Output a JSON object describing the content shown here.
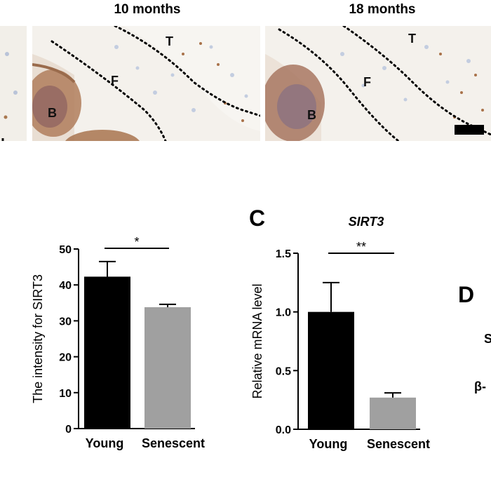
{
  "top": {
    "headers": [
      "10 months",
      "18 months"
    ],
    "micrographs": [
      {
        "labels": [
          "T",
          "F",
          "B"
        ]
      },
      {
        "labels": [
          "T",
          "F",
          "B"
        ]
      }
    ]
  },
  "panels": {
    "c_letter": "C",
    "d_letter": "D",
    "c_title": "SIRT3",
    "d_partial_labels": [
      "S",
      "β-"
    ]
  },
  "chart_data": [
    {
      "type": "bar",
      "title": "",
      "categories": [
        "Young",
        "Senescent"
      ],
      "values": [
        42.3,
        33.8
      ],
      "errors": [
        4.2,
        0.8
      ],
      "colors": [
        "#000000",
        "#a0a0a0"
      ],
      "ylabel": "The intensity for SIRT3",
      "xlabel": "",
      "ylim": [
        0,
        50
      ],
      "yticks": [
        "0",
        "10",
        "20",
        "30",
        "40",
        "50"
      ],
      "significance": "*"
    },
    {
      "type": "bar",
      "title": "SIRT3",
      "categories": [
        "Young",
        "Senescent"
      ],
      "values": [
        1.0,
        0.27
      ],
      "errors": [
        0.25,
        0.04
      ],
      "colors": [
        "#000000",
        "#a0a0a0"
      ],
      "ylabel": "Relative mRNA level",
      "xlabel": "",
      "ylim": [
        0,
        1.5
      ],
      "yticks": [
        "0.0",
        "0.5",
        "1.0",
        "1.5"
      ],
      "significance": "**"
    }
  ]
}
